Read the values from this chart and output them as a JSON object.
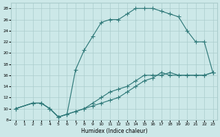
{
  "xlabel": "Humidex (Indice chaleur)",
  "bg_color": "#cce8e8",
  "grid_color": "#aacccc",
  "line_color": "#2e7878",
  "xlim": [
    -0.5,
    23.5
  ],
  "ylim": [
    8,
    29
  ],
  "xticks": [
    0,
    1,
    2,
    3,
    4,
    5,
    6,
    7,
    8,
    9,
    10,
    11,
    12,
    13,
    14,
    15,
    16,
    17,
    18,
    19,
    20,
    21,
    22,
    23
  ],
  "yticks": [
    8,
    10,
    12,
    14,
    16,
    18,
    20,
    22,
    24,
    26,
    28
  ],
  "curve1_x": [
    0,
    2,
    3,
    4,
    5,
    6,
    7,
    8,
    9,
    10,
    11,
    12,
    13,
    14,
    15,
    16,
    17,
    18,
    19,
    20,
    21,
    22,
    23
  ],
  "curve1_y": [
    10,
    11,
    11,
    10,
    8.5,
    9,
    17,
    20.5,
    23,
    25.5,
    26,
    26,
    27,
    28,
    28,
    28,
    27.5,
    27,
    26.5,
    24,
    22,
    22,
    16.5
  ],
  "curve2_x": [
    0,
    2,
    3,
    4,
    5,
    6,
    7,
    8,
    9,
    10,
    11,
    12,
    13,
    14,
    15,
    16,
    17,
    18,
    19,
    20,
    21,
    22,
    23
  ],
  "curve2_y": [
    10,
    11,
    11,
    10,
    8.5,
    9,
    9.5,
    10,
    10.5,
    11,
    11.5,
    12,
    13,
    14,
    15,
    15.5,
    16.5,
    16,
    16,
    16,
    16,
    16,
    16.5
  ],
  "curve3_x": [
    0,
    2,
    3,
    4,
    5,
    6,
    7,
    8,
    9,
    10,
    11,
    12,
    13,
    14,
    15,
    16,
    17,
    18,
    19,
    20,
    21,
    22,
    23
  ],
  "curve3_y": [
    10,
    11,
    11,
    10,
    8.5,
    9,
    9.5,
    10,
    11,
    12,
    13,
    13.5,
    14,
    15,
    16,
    16,
    16,
    16.5,
    16,
    16,
    16,
    16,
    16.5
  ]
}
